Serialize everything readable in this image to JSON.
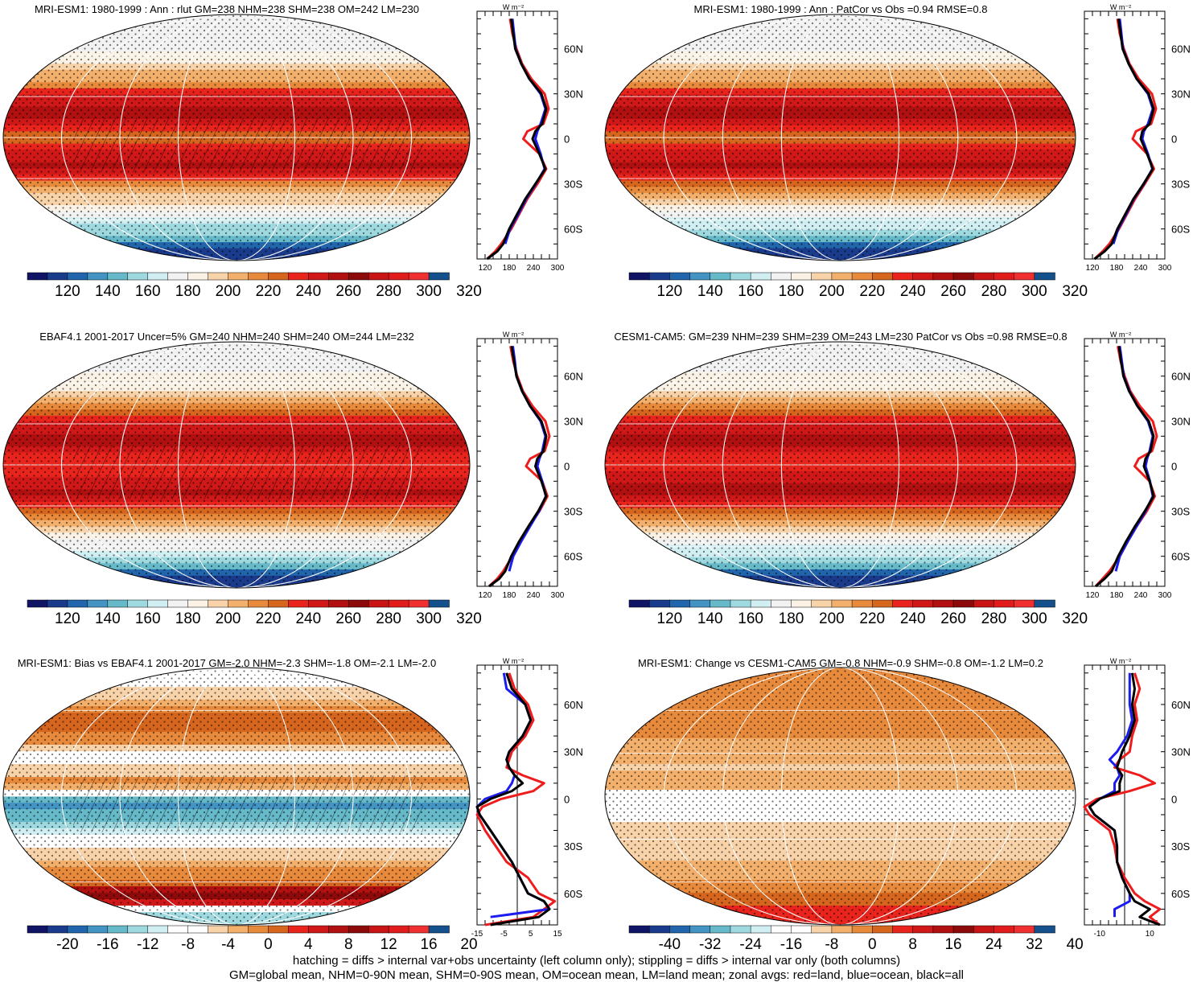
{
  "figure": {
    "footer_line1": "hatching = diffs > internal var+obs uncertainty (left column only); stippling = diffs > internal var only (both columns)",
    "footer_line2": "GM=global mean, NHM=0-90N mean, SHM=0-90S mean, OM=ocean mean, LM=land mean; zonal avgs: red=land, blue=ocean, black=all",
    "colors": {
      "land": "#ee1c1c",
      "ocean": "#1c1cee",
      "all": "#000000"
    },
    "palette_abs": [
      "#101464",
      "#1a3a8c",
      "#2166ac",
      "#4393c3",
      "#66b9c8",
      "#9fd9e0",
      "#d1eef2",
      "#f2f2f2",
      "#fbf2e6",
      "#f8d2a8",
      "#f2b06c",
      "#e88a3c",
      "#d6661e",
      "#e8241c",
      "#d01818",
      "#b01010",
      "#8c0a0a",
      "#c81414",
      "#e01c1c",
      "#f03030",
      "#14508c"
    ],
    "palette_diff": [
      "#101464",
      "#1a3a8c",
      "#2166ac",
      "#4393c3",
      "#66b9c8",
      "#9fd9e0",
      "#d1eef2",
      "#ffffff",
      "#ffffff",
      "#f8d2a8",
      "#f2b06c",
      "#e88a3c",
      "#d6661e",
      "#e8241c",
      "#d01818",
      "#b01010",
      "#8c0a0a",
      "#c81414",
      "#e01c1c",
      "#f03030",
      "#14508c"
    ]
  },
  "chart_data": [
    {
      "type": "heatmap",
      "title": "MRI-ESM1: 1980-1999 : Ann : rlut GM=238 NHM=238 SHM=238 OM=242 LM=230",
      "colorbar_labels": [
        "120",
        "140",
        "160",
        "180",
        "200",
        "220",
        "240",
        "260",
        "280",
        "300",
        "320"
      ],
      "clim": [
        110,
        330
      ],
      "zonal": {
        "unit": "W m⁻²",
        "xticks": [
          "120",
          "180",
          "240",
          "300"
        ],
        "xlim": [
          100,
          300
        ],
        "yticks": [
          "60N",
          "30N",
          "0",
          "30S",
          "60S"
        ],
        "ylim": [
          -80,
          85
        ],
        "lat": [
          -80,
          -75,
          -70,
          -60,
          -50,
          -40,
          -30,
          -20,
          -10,
          0,
          5,
          10,
          20,
          30,
          40,
          50,
          60,
          70,
          80
        ],
        "all": [
          125,
          150,
          165,
          180,
          200,
          220,
          245,
          270,
          255,
          238,
          245,
          262,
          272,
          260,
          230,
          210,
          195,
          190,
          185
        ],
        "land": [
          125,
          145,
          160,
          185,
          205,
          225,
          250,
          272,
          255,
          215,
          225,
          265,
          278,
          268,
          235,
          212,
          198,
          188,
          182
        ],
        "ocean": [
          null,
          null,
          170,
          182,
          203,
          222,
          246,
          268,
          258,
          245,
          250,
          258,
          270,
          258,
          230,
          210,
          196,
          192,
          188
        ]
      },
      "stipple": true,
      "hatch": true
    },
    {
      "type": "heatmap",
      "title": "MRI-ESM1: 1980-1999 : Ann : PatCor vs Obs =0.94 RMSE=0.8",
      "colorbar_labels": [
        "120",
        "140",
        "160",
        "180",
        "200",
        "220",
        "240",
        "260",
        "280",
        "300",
        "320"
      ],
      "clim": [
        110,
        330
      ],
      "zonal": {
        "unit": "W m⁻²",
        "xticks": [
          "120",
          "180",
          "240",
          "300"
        ],
        "xlim": [
          100,
          300
        ],
        "yticks": [
          "60N",
          "30N",
          "0",
          "30S",
          "60S"
        ],
        "ylim": [
          -80,
          85
        ],
        "lat": [
          -80,
          -75,
          -70,
          -60,
          -50,
          -40,
          -30,
          -20,
          -10,
          0,
          5,
          10,
          20,
          30,
          40,
          50,
          60,
          70,
          80
        ],
        "all": [
          125,
          150,
          168,
          182,
          202,
          222,
          247,
          270,
          256,
          240,
          244,
          262,
          272,
          260,
          230,
          210,
          195,
          190,
          185
        ],
        "land": [
          125,
          145,
          162,
          186,
          206,
          226,
          250,
          273,
          256,
          220,
          228,
          266,
          278,
          268,
          235,
          212,
          198,
          188,
          182
        ],
        "ocean": [
          null,
          null,
          172,
          184,
          204,
          223,
          248,
          269,
          258,
          244,
          248,
          258,
          270,
          258,
          230,
          210,
          196,
          192,
          188
        ]
      },
      "stipple": true,
      "hatch": false
    },
    {
      "type": "heatmap",
      "title": "EBAF4.1 2001-2017 Uncer=5% GM=240 NHM=240 SHM=240 OM=244 LM=232",
      "colorbar_labels": [
        "120",
        "140",
        "160",
        "180",
        "200",
        "220",
        "240",
        "260",
        "280",
        "300",
        "320"
      ],
      "clim": [
        110,
        330
      ],
      "zonal": {
        "unit": "W m⁻²",
        "xticks": [
          "120",
          "180",
          "240",
          "300"
        ],
        "xlim": [
          100,
          300
        ],
        "yticks": [
          "60N",
          "30N",
          "0",
          "30S",
          "60S"
        ],
        "ylim": [
          -80,
          85
        ],
        "lat": [
          -80,
          -75,
          -70,
          -60,
          -50,
          -40,
          -30,
          -20,
          -10,
          0,
          5,
          10,
          20,
          30,
          40,
          50,
          60,
          70,
          80
        ],
        "all": [
          130,
          155,
          170,
          185,
          205,
          228,
          252,
          272,
          260,
          245,
          250,
          265,
          272,
          260,
          232,
          212,
          198,
          192,
          186
        ],
        "land": [
          130,
          150,
          165,
          188,
          208,
          230,
          255,
          275,
          262,
          222,
          232,
          268,
          280,
          270,
          238,
          214,
          200,
          190,
          183
        ],
        "ocean": [
          null,
          null,
          180,
          190,
          210,
          232,
          254,
          271,
          262,
          250,
          255,
          262,
          270,
          258,
          232,
          212,
          198,
          194,
          189
        ]
      },
      "stipple": true,
      "hatch": true
    },
    {
      "type": "heatmap",
      "title": "CESM1-CAM5: GM=239 NHM=239 SHM=239 OM=243 LM=230 PatCor vs Obs =0.98 RMSE=0.8",
      "colorbar_labels": [
        "120",
        "140",
        "160",
        "180",
        "200",
        "220",
        "240",
        "260",
        "280",
        "300",
        "320"
      ],
      "clim": [
        110,
        330
      ],
      "zonal": {
        "unit": "W m⁻²",
        "xticks": [
          "120",
          "180",
          "240",
          "300"
        ],
        "xlim": [
          100,
          300
        ],
        "yticks": [
          "60N",
          "30N",
          "0",
          "30S",
          "60S"
        ],
        "ylim": [
          -80,
          85
        ],
        "lat": [
          -80,
          -75,
          -70,
          -60,
          -50,
          -40,
          -30,
          -20,
          -10,
          0,
          5,
          10,
          20,
          30,
          40,
          50,
          60,
          70,
          80
        ],
        "all": [
          128,
          150,
          168,
          184,
          204,
          226,
          250,
          272,
          262,
          248,
          252,
          264,
          272,
          260,
          232,
          211,
          197,
          191,
          186
        ],
        "land": [
          128,
          145,
          162,
          188,
          208,
          230,
          255,
          275,
          262,
          225,
          235,
          268,
          280,
          270,
          238,
          214,
          200,
          190,
          183
        ],
        "ocean": [
          null,
          null,
          178,
          188,
          208,
          230,
          252,
          270,
          263,
          252,
          256,
          262,
          270,
          258,
          232,
          212,
          198,
          193,
          188
        ]
      },
      "stipple": true,
      "hatch": false
    },
    {
      "type": "heatmap",
      "title": "MRI-ESM1: Bias vs EBAF4.1 2001-2017 GM=-2.0 NHM=-2.3 SHM=-1.8 OM=-2.1 LM=-2.0",
      "colorbar_labels": [
        "-20",
        "-16",
        "-12",
        "-8",
        "-4",
        "0",
        "4",
        "8",
        "12",
        "16",
        "20"
      ],
      "clim": [
        -22,
        22
      ],
      "zonal": {
        "unit": "W m⁻²",
        "xticks": [
          "-15",
          "-5",
          "5",
          "15"
        ],
        "xlim": [
          -15,
          15
        ],
        "yticks": [
          "60N",
          "30N",
          "0",
          "30S",
          "60S"
        ],
        "ylim": [
          -80,
          85
        ],
        "zero_line": true,
        "lat": [
          -80,
          -75,
          -70,
          -65,
          -60,
          -50,
          -40,
          -30,
          -20,
          -10,
          -5,
          0,
          5,
          10,
          15,
          20,
          25,
          30,
          40,
          50,
          60,
          70,
          80
        ],
        "all": [
          -10,
          8,
          12,
          10,
          4,
          1,
          -2,
          -6,
          -10,
          -14,
          -15,
          -10,
          -2,
          2,
          -1,
          -3,
          -4,
          -3,
          2,
          5,
          3,
          -2,
          -4
        ],
        "land": [
          -12,
          6,
          10,
          14,
          8,
          4,
          -4,
          -8,
          -12,
          -15,
          -13,
          -6,
          6,
          10,
          2,
          -4,
          -3,
          -2,
          3,
          6,
          4,
          -1,
          -3
        ],
        "ocean": [
          null,
          -10,
          12,
          10,
          4,
          1,
          -2,
          -6,
          -10,
          -14,
          -15,
          -12,
          -4,
          -2,
          -1,
          -3,
          -4,
          -3,
          2,
          5,
          3,
          -4,
          -5
        ]
      },
      "stipple": true,
      "hatch": true
    },
    {
      "type": "heatmap",
      "title": "MRI-ESM1: Change vs CESM1-CAM5 GM=-0.8 NHM=-0.9 SHM=-0.8 OM=-1.2 LM=0.2",
      "colorbar_labels": [
        "-40",
        "-32",
        "-24",
        "-16",
        "-8",
        "0",
        "8",
        "16",
        "24",
        "32",
        "40"
      ],
      "clim": [
        -44,
        44
      ],
      "zonal": {
        "unit": "W m⁻²",
        "xticks": [
          "-10",
          "10"
        ],
        "xlim": [
          -16,
          16
        ],
        "yticks": [
          "60N",
          "30N",
          "0",
          "30S",
          "60S"
        ],
        "ylim": [
          -80,
          85
        ],
        "zero_line": true,
        "lat": [
          -80,
          -75,
          -70,
          -65,
          -60,
          -50,
          -40,
          -30,
          -20,
          -10,
          -5,
          0,
          5,
          10,
          15,
          20,
          25,
          30,
          40,
          50,
          60,
          70,
          80
        ],
        "all": [
          14,
          6,
          10,
          4,
          2,
          -1,
          -3,
          -3,
          -4,
          -12,
          -14,
          -10,
          -2,
          -2,
          -1,
          -3,
          -2,
          -1,
          2,
          4,
          3,
          4,
          3
        ],
        "land": [
          14,
          10,
          14,
          8,
          4,
          0,
          -3,
          -4,
          -6,
          -14,
          -16,
          -11,
          2,
          12,
          6,
          -4,
          -2,
          2,
          3,
          5,
          4,
          6,
          4
        ],
        "ocean": [
          null,
          -4,
          -4,
          2,
          2,
          -1,
          -3,
          -3,
          -4,
          -12,
          -14,
          -10,
          -4,
          -4,
          -2,
          -3,
          -6,
          -3,
          1,
          3,
          2,
          2,
          2
        ]
      },
      "stipple": true,
      "hatch": false
    }
  ]
}
